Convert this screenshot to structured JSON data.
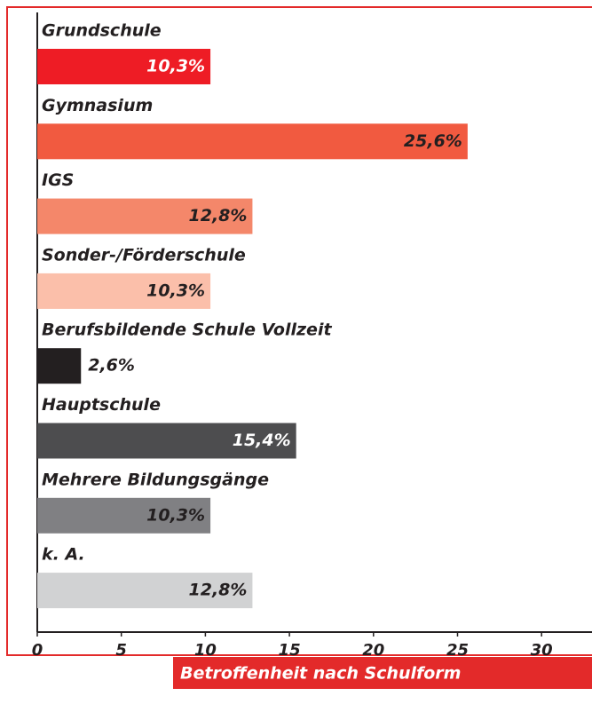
{
  "chart_data": {
    "type": "bar",
    "orientation": "horizontal",
    "caption": "Betroffenheit nach Schulform",
    "categories": [
      "Grundschule",
      "Gymnasium",
      "IGS",
      "Sonder-/Förderschule",
      "Berufsbildende Schule Vollzeit",
      "Hauptschule",
      "Mehrere Bildungsgänge",
      "k. A."
    ],
    "values": [
      10.3,
      25.6,
      12.8,
      10.3,
      2.6,
      15.4,
      10.3,
      12.8
    ],
    "value_labels": [
      "10,3%",
      "25,6%",
      "12,8%",
      "10,3%",
      "2,6%",
      "15,4%",
      "10,3%",
      "12,8%"
    ],
    "colors": [
      "#ee1c25",
      "#f15a40",
      "#f4876a",
      "#fbbfaa",
      "#231f20",
      "#4d4d4f",
      "#808083",
      "#d1d2d3"
    ],
    "xlim": [
      0,
      33
    ],
    "xticks": [
      0,
      5,
      10,
      15,
      20,
      25,
      30
    ]
  }
}
